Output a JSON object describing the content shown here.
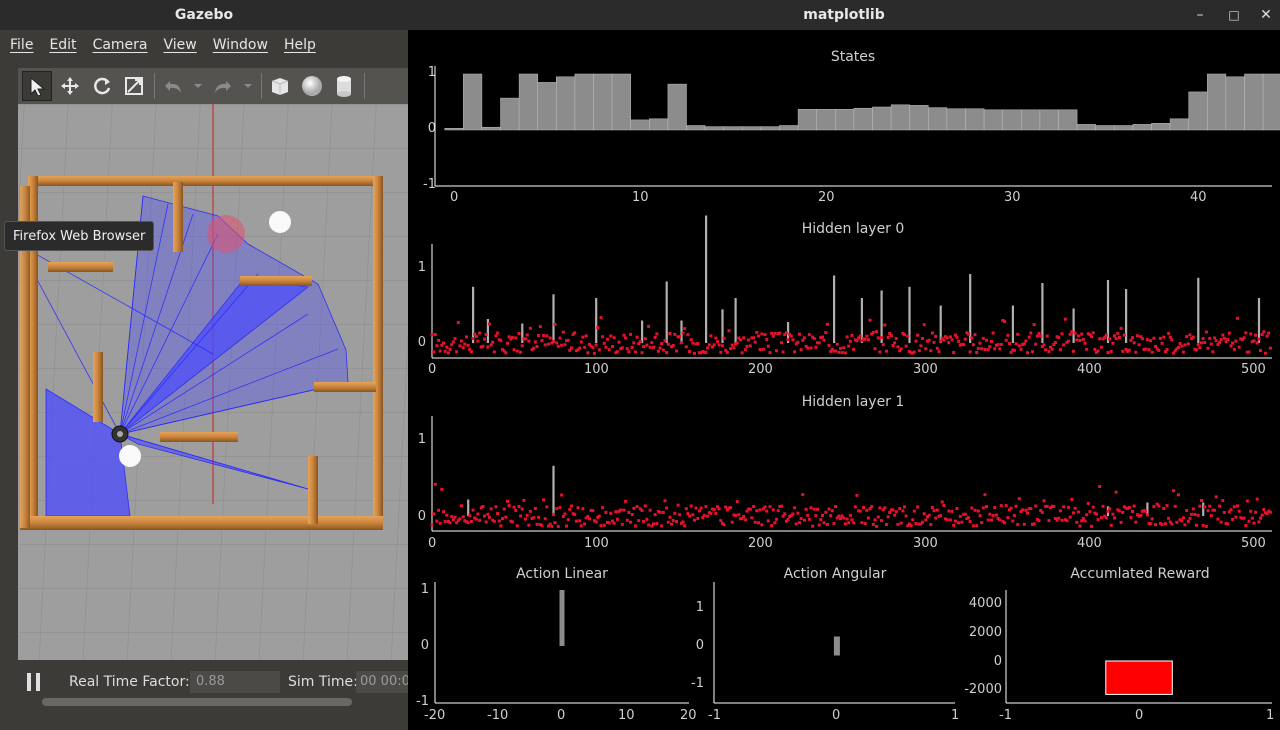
{
  "gazebo": {
    "title": "Gazebo",
    "menu": [
      "File",
      "Edit",
      "Camera",
      "View",
      "Window",
      "Help"
    ],
    "toolbar_icons": [
      "select-arrow-icon",
      "translate-icon",
      "rotate-icon",
      "scale-icon",
      "undo-icon",
      "redo-icon",
      "box-shape-icon",
      "sphere-shape-icon",
      "cylinder-shape-icon"
    ],
    "tooltip": "Firefox Web Browser",
    "status": {
      "rtf_label": "Real Time Factor:",
      "rtf_value": "0.88",
      "sim_time_label": "Sim Time:",
      "sim_time_value": "00 00:0"
    }
  },
  "matplotlib": {
    "title": "matplotlib",
    "window_buttons": [
      "minimize-icon",
      "maximize-icon",
      "close-icon"
    ]
  },
  "chart_data": [
    {
      "type": "bar",
      "title": "States",
      "ylim": [
        -1,
        1
      ],
      "yticks": [
        "1",
        "0",
        "-1"
      ],
      "xticks": [
        "0",
        "10",
        "20",
        "30",
        "40"
      ],
      "color": "#8c8c8c",
      "values": [
        0.03,
        1.0,
        0.05,
        0.57,
        1.0,
        0.85,
        0.95,
        1.0,
        1.0,
        1.0,
        0.18,
        0.2,
        0.82,
        0.08,
        0.06,
        0.06,
        0.06,
        0.06,
        0.08,
        0.37,
        0.37,
        0.37,
        0.39,
        0.41,
        0.45,
        0.44,
        0.4,
        0.38,
        0.38,
        0.36,
        0.36,
        0.36,
        0.36,
        0.36,
        0.1,
        0.08,
        0.08,
        0.1,
        0.12,
        0.2,
        0.68,
        1.0,
        0.95,
        1.0,
        1.0
      ]
    },
    {
      "type": "bar+scatter",
      "title": "Hidden layer 0",
      "ylim": [
        -0.3,
        1.8
      ],
      "yticks": [
        "1",
        "0"
      ],
      "xticks": [
        "0",
        "100",
        "200",
        "300",
        "400",
        "500"
      ],
      "bar_color": "#b0b0b0",
      "point_color": "#e8102a",
      "tall_bars": [
        [
          25,
          0.75
        ],
        [
          34,
          0.32
        ],
        [
          55,
          0.26
        ],
        [
          74,
          0.65
        ],
        [
          100,
          0.6
        ],
        [
          128,
          0.3
        ],
        [
          143,
          0.82
        ],
        [
          152,
          0.3
        ],
        [
          167,
          1.7
        ],
        [
          177,
          0.45
        ],
        [
          185,
          0.6
        ],
        [
          217,
          0.28
        ],
        [
          245,
          0.9
        ],
        [
          262,
          0.6
        ],
        [
          274,
          0.7
        ],
        [
          291,
          0.75
        ],
        [
          310,
          0.5
        ],
        [
          328,
          0.92
        ],
        [
          354,
          0.5
        ],
        [
          372,
          0.8
        ],
        [
          391,
          0.46
        ],
        [
          412,
          0.84
        ],
        [
          423,
          0.72
        ],
        [
          467,
          0.87
        ],
        [
          504,
          0.6
        ]
      ]
    },
    {
      "type": "bar+scatter",
      "title": "Hidden layer 1",
      "ylim": [
        -0.3,
        1.8
      ],
      "yticks": [
        "1",
        "0"
      ],
      "xticks": [
        "0",
        "100",
        "200",
        "300",
        "400",
        "500"
      ],
      "bar_color": "#b0b0b0",
      "point_color": "#e8102a",
      "tall_bars": [
        [
          22,
          0.22
        ],
        [
          74,
          0.67
        ],
        [
          412,
          0.13
        ],
        [
          436,
          0.18
        ],
        [
          470,
          0.18
        ]
      ]
    },
    {
      "type": "bar",
      "title": "Action Linear",
      "xlim": [
        -20,
        20
      ],
      "ylim": [
        -1,
        1
      ],
      "xticks": [
        "-20",
        "-10",
        "0",
        "10",
        "20"
      ],
      "yticks": [
        "1",
        "0",
        "-1"
      ],
      "bars": [
        {
          "x": 0,
          "y0": 0,
          "y1": 1.0
        }
      ],
      "color": "#8c8c8c"
    },
    {
      "type": "bar",
      "title": "Action Angular",
      "xlim": [
        -1,
        1
      ],
      "ylim": [
        -1.5,
        1.5
      ],
      "xticks": [
        "-1",
        "0",
        "1"
      ],
      "yticks": [
        "1",
        "0",
        "-1"
      ],
      "bars": [
        {
          "x": 0.02,
          "y0": -0.25,
          "y1": 0.25
        }
      ],
      "color": "#8c8c8c"
    },
    {
      "type": "bar",
      "title": "Accumlated Reward",
      "xlim": [
        -1,
        1
      ],
      "ylim": [
        -3000,
        5000
      ],
      "xticks": [
        "-1",
        "0",
        "1"
      ],
      "yticks": [
        "4000",
        "2000",
        "0",
        "-2000"
      ],
      "bars": [
        {
          "x0": -0.25,
          "x1": 0.25,
          "y0": -2300,
          "y1": 0
        }
      ],
      "color": "#ff0000"
    }
  ]
}
